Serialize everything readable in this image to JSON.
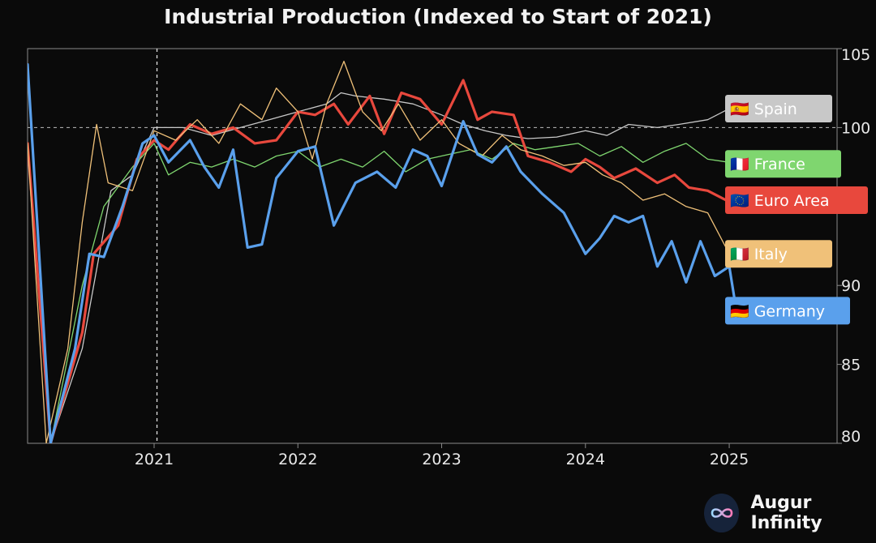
{
  "brand": {
    "name": "Augur Infinity",
    "logo_icon": "infinity-icon"
  },
  "chart_data": {
    "type": "line",
    "title": "Industrial Production (Indexed to Start of 2021)",
    "xlabel": "",
    "ylabel": "",
    "xlim": [
      2020.12,
      2025.75
    ],
    "ylim": [
      80,
      105
    ],
    "y_axis_side": "right",
    "y_ticks": [
      80,
      85,
      90,
      95,
      100,
      105
    ],
    "x_ticks": [
      {
        "value": 2021.0,
        "label": "2021"
      },
      {
        "value": 2022.0,
        "label": "2022"
      },
      {
        "value": 2023.0,
        "label": "2023"
      },
      {
        "value": 2024.0,
        "label": "2024"
      },
      {
        "value": 2025.0,
        "label": "2025"
      }
    ],
    "reference_line": {
      "axis": "y",
      "value": 100,
      "style": "dashed"
    },
    "vertical_marker": {
      "axis": "x",
      "value": 2021.02,
      "style": "dashed"
    },
    "legend": "direct labels at line ends (right)",
    "grid": false,
    "series": [
      {
        "name": "Spain",
        "flag": "🇪🇸",
        "color": "#c8c8c8",
        "width": 1.3,
        "points": [
          [
            2020.12,
            99
          ],
          [
            2020.28,
            80
          ],
          [
            2020.5,
            86
          ],
          [
            2020.7,
            96
          ],
          [
            2020.85,
            97
          ],
          [
            2021.0,
            100
          ],
          [
            2021.2,
            100
          ],
          [
            2021.4,
            99.5
          ],
          [
            2021.6,
            100
          ],
          [
            2021.8,
            100.5
          ],
          [
            2022.0,
            101
          ],
          [
            2022.2,
            101.5
          ],
          [
            2022.3,
            102.2
          ],
          [
            2022.4,
            102
          ],
          [
            2022.6,
            101.8
          ],
          [
            2022.8,
            101.5
          ],
          [
            2023.0,
            100.8
          ],
          [
            2023.15,
            100.2
          ],
          [
            2023.3,
            99.8
          ],
          [
            2023.45,
            99.5
          ],
          [
            2023.6,
            99.3
          ],
          [
            2023.8,
            99.4
          ],
          [
            2024.0,
            99.8
          ],
          [
            2024.15,
            99.5
          ],
          [
            2024.3,
            100.2
          ],
          [
            2024.5,
            100
          ],
          [
            2024.65,
            100.2
          ],
          [
            2024.85,
            100.5
          ],
          [
            2025.0,
            101.2
          ]
        ]
      },
      {
        "name": "France",
        "flag": "🇫🇷",
        "color": "#7fd66f",
        "width": 1.3,
        "points": [
          [
            2020.12,
            99
          ],
          [
            2020.28,
            80
          ],
          [
            2020.5,
            90
          ],
          [
            2020.65,
            95
          ],
          [
            2020.85,
            97.5
          ],
          [
            2021.0,
            99
          ],
          [
            2021.1,
            97
          ],
          [
            2021.25,
            97.8
          ],
          [
            2021.4,
            97.5
          ],
          [
            2021.55,
            98
          ],
          [
            2021.7,
            97.5
          ],
          [
            2021.85,
            98.2
          ],
          [
            2022.0,
            98.5
          ],
          [
            2022.15,
            97.5
          ],
          [
            2022.3,
            98
          ],
          [
            2022.45,
            97.5
          ],
          [
            2022.6,
            98.5
          ],
          [
            2022.75,
            97.2
          ],
          [
            2022.9,
            98
          ],
          [
            2023.05,
            98.3
          ],
          [
            2023.2,
            98.6
          ],
          [
            2023.35,
            98
          ],
          [
            2023.5,
            99
          ],
          [
            2023.65,
            98.6
          ],
          [
            2023.8,
            98.8
          ],
          [
            2023.95,
            99
          ],
          [
            2024.1,
            98.2
          ],
          [
            2024.25,
            98.8
          ],
          [
            2024.4,
            97.8
          ],
          [
            2024.55,
            98.5
          ],
          [
            2024.7,
            99
          ],
          [
            2024.85,
            98
          ],
          [
            2025.0,
            97.8
          ]
        ]
      },
      {
        "name": "Euro Area",
        "flag": "🇪🇺",
        "color": "#e8483d",
        "width": 3.2,
        "points": [
          [
            2020.12,
            99
          ],
          [
            2020.28,
            80
          ],
          [
            2020.5,
            87
          ],
          [
            2020.58,
            92
          ],
          [
            2020.75,
            93.8
          ],
          [
            2020.88,
            98
          ],
          [
            2021.0,
            99.2
          ],
          [
            2021.1,
            98.6
          ],
          [
            2021.25,
            100.2
          ],
          [
            2021.4,
            99.6
          ],
          [
            2021.55,
            100
          ],
          [
            2021.7,
            99
          ],
          [
            2021.85,
            99.2
          ],
          [
            2022.0,
            101
          ],
          [
            2022.12,
            100.8
          ],
          [
            2022.25,
            101.5
          ],
          [
            2022.35,
            100.2
          ],
          [
            2022.5,
            102
          ],
          [
            2022.6,
            99.6
          ],
          [
            2022.72,
            102.2
          ],
          [
            2022.85,
            101.8
          ],
          [
            2023.0,
            100.2
          ],
          [
            2023.15,
            103
          ],
          [
            2023.25,
            100.5
          ],
          [
            2023.35,
            101
          ],
          [
            2023.5,
            100.8
          ],
          [
            2023.6,
            98.2
          ],
          [
            2023.75,
            97.8
          ],
          [
            2023.9,
            97.2
          ],
          [
            2024.0,
            98
          ],
          [
            2024.1,
            97.5
          ],
          [
            2024.2,
            96.8
          ],
          [
            2024.35,
            97.4
          ],
          [
            2024.5,
            96.5
          ],
          [
            2024.62,
            97
          ],
          [
            2024.72,
            96.2
          ],
          [
            2024.85,
            96
          ],
          [
            2025.0,
            95.3
          ]
        ]
      },
      {
        "name": "Italy",
        "flag": "🇮🇹",
        "color": "#f0c179",
        "width": 1.3,
        "points": [
          [
            2020.12,
            99
          ],
          [
            2020.25,
            80
          ],
          [
            2020.4,
            86
          ],
          [
            2020.5,
            94
          ],
          [
            2020.6,
            100.2
          ],
          [
            2020.68,
            96.5
          ],
          [
            2020.85,
            96
          ],
          [
            2021.0,
            99.8
          ],
          [
            2021.15,
            99.2
          ],
          [
            2021.3,
            100.5
          ],
          [
            2021.45,
            99
          ],
          [
            2021.6,
            101.5
          ],
          [
            2021.75,
            100.5
          ],
          [
            2021.85,
            102.5
          ],
          [
            2022.0,
            101
          ],
          [
            2022.1,
            98
          ],
          [
            2022.2,
            101.5
          ],
          [
            2022.32,
            104.2
          ],
          [
            2022.45,
            101
          ],
          [
            2022.58,
            99.8
          ],
          [
            2022.7,
            101.5
          ],
          [
            2022.85,
            99.2
          ],
          [
            2023.0,
            100.5
          ],
          [
            2023.12,
            99
          ],
          [
            2023.28,
            98.2
          ],
          [
            2023.42,
            99.5
          ],
          [
            2023.55,
            98.6
          ],
          [
            2023.7,
            98.2
          ],
          [
            2023.85,
            97.6
          ],
          [
            2024.0,
            97.8
          ],
          [
            2024.12,
            97
          ],
          [
            2024.25,
            96.5
          ],
          [
            2024.4,
            95.4
          ],
          [
            2024.55,
            95.8
          ],
          [
            2024.7,
            95
          ],
          [
            2024.85,
            94.6
          ],
          [
            2025.0,
            92
          ]
        ]
      },
      {
        "name": "Germany",
        "flag": "🇩🇪",
        "color": "#5aa0ec",
        "width": 3.2,
        "points": [
          [
            2020.12,
            104
          ],
          [
            2020.28,
            80
          ],
          [
            2020.45,
            86
          ],
          [
            2020.55,
            92
          ],
          [
            2020.65,
            91.8
          ],
          [
            2020.78,
            95
          ],
          [
            2020.92,
            99
          ],
          [
            2021.0,
            99.5
          ],
          [
            2021.1,
            97.8
          ],
          [
            2021.25,
            99.2
          ],
          [
            2021.35,
            97.5
          ],
          [
            2021.45,
            96.2
          ],
          [
            2021.55,
            98.6
          ],
          [
            2021.65,
            92.4
          ],
          [
            2021.75,
            92.6
          ],
          [
            2021.85,
            96.8
          ],
          [
            2022.0,
            98.5
          ],
          [
            2022.12,
            98.8
          ],
          [
            2022.25,
            93.8
          ],
          [
            2022.4,
            96.5
          ],
          [
            2022.55,
            97.2
          ],
          [
            2022.68,
            96.2
          ],
          [
            2022.8,
            98.6
          ],
          [
            2022.9,
            98.2
          ],
          [
            2023.0,
            96.3
          ],
          [
            2023.15,
            100.4
          ],
          [
            2023.25,
            98.3
          ],
          [
            2023.35,
            97.8
          ],
          [
            2023.45,
            98.8
          ],
          [
            2023.55,
            97.2
          ],
          [
            2023.7,
            95.8
          ],
          [
            2023.85,
            94.6
          ],
          [
            2024.0,
            92
          ],
          [
            2024.1,
            93
          ],
          [
            2024.2,
            94.4
          ],
          [
            2024.3,
            94
          ],
          [
            2024.4,
            94.4
          ],
          [
            2024.5,
            91.2
          ],
          [
            2024.6,
            92.8
          ],
          [
            2024.7,
            90.2
          ],
          [
            2024.8,
            92.8
          ],
          [
            2024.9,
            90.6
          ],
          [
            2025.0,
            91.2
          ],
          [
            2025.05,
            88.4
          ]
        ]
      }
    ],
    "end_labels": [
      {
        "series": "Spain",
        "y": 101.2
      },
      {
        "series": "France",
        "y": 97.7
      },
      {
        "series": "Euro Area",
        "y": 95.4
      },
      {
        "series": "Italy",
        "y": 92.0
      },
      {
        "series": "Germany",
        "y": 88.4
      }
    ]
  }
}
